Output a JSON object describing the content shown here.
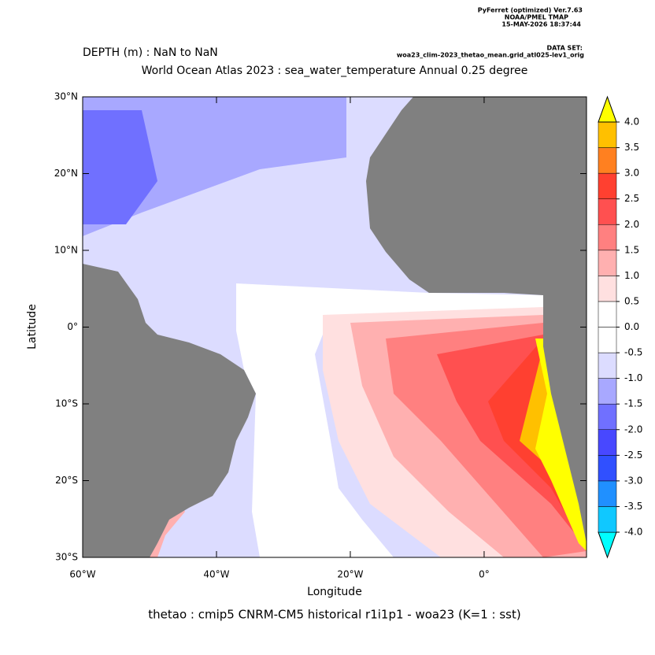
{
  "chart_data": {
    "type": "filled-contour-map",
    "header_lines": [
      "PyFerret (optimized) Ver.7.63",
      "NOAA/PMEL TMAP",
      "15-MAY-2026 18:37:44"
    ],
    "dataset_label": "DATA SET:",
    "dataset": "woa23_clim-2023_thetao_mean.grid_atl025-lev1_orig",
    "subtitle": "DEPTH (m) : NaN to NaN",
    "title": "World Ocean Atlas 2023 : sea_water_temperature Annual  0.25 degree",
    "x_label": "Longitude",
    "y_label": "Latitude",
    "caption": "thetao : cmip5 CNRM-CM5 historical r1i1p1 - woa23  (K=1 : sst)",
    "xlim": [
      -60,
      15.3
    ],
    "ylim": [
      -30,
      30
    ],
    "xticks": [
      {
        "value": -60,
        "label": "60°W"
      },
      {
        "value": -40,
        "label": "40°W"
      },
      {
        "value": -20,
        "label": "20°W"
      },
      {
        "value": 0,
        "label": "0°"
      }
    ],
    "yticks": [
      {
        "value": 30,
        "label": "30°N"
      },
      {
        "value": 20,
        "label": "20°N"
      },
      {
        "value": 10,
        "label": "10°N"
      },
      {
        "value": 0,
        "label": "0°"
      },
      {
        "value": -10,
        "label": "10°S"
      },
      {
        "value": -20,
        "label": "20°S"
      },
      {
        "value": -30,
        "label": "30°S"
      }
    ],
    "land_color": "#808080",
    "colorbar": {
      "levels": [
        {
          "value": -4,
          "label": "-4.0"
        },
        {
          "value": -3.5,
          "label": "-3.5"
        },
        {
          "value": -3,
          "label": "-3.0"
        },
        {
          "value": -2.5,
          "label": "-2.5"
        },
        {
          "value": -2,
          "label": "-2.0"
        },
        {
          "value": -1.5,
          "label": "-1.5"
        },
        {
          "value": -1,
          "label": "-1.0"
        },
        {
          "value": -0.5,
          "label": "-0.5"
        },
        {
          "value": 0,
          "label": "0.0"
        },
        {
          "value": 0.5,
          "label": "0.5"
        },
        {
          "value": 1,
          "label": "1.0"
        },
        {
          "value": 1.5,
          "label": "1.5"
        },
        {
          "value": 2,
          "label": "2.0"
        },
        {
          "value": 2.5,
          "label": "2.5"
        },
        {
          "value": 3,
          "label": "3.0"
        },
        {
          "value": 3.5,
          "label": "3.5"
        },
        {
          "value": 4,
          "label": "4.0"
        }
      ],
      "colors": [
        "#00ffff",
        "#10c8ff",
        "#2090ff",
        "#3050ff",
        "#4848ff",
        "#7070ff",
        "#a8a8ff",
        "#dcdcff",
        "#ffffff",
        "#ffffff",
        "#ffe0e0",
        "#ffb0b0",
        "#ff8080",
        "#ff5050",
        "#ff4030",
        "#ff8020",
        "#ffc000",
        "#ffff00"
      ]
    }
  }
}
